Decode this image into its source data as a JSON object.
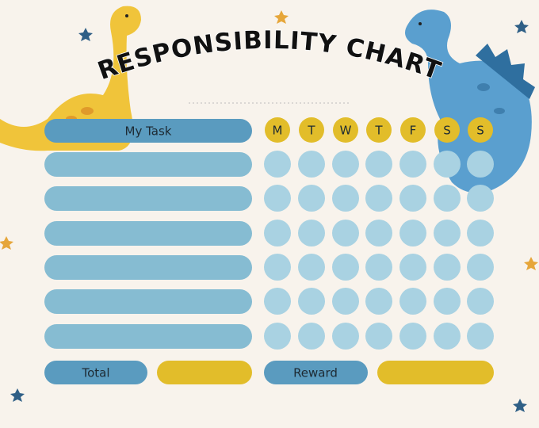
{
  "header": {
    "title": "RESPONSIBILITY CHART"
  },
  "table": {
    "task_header": "My Task",
    "days": [
      "M",
      "T",
      "W",
      "T",
      "F",
      "S",
      "S"
    ],
    "total_label": "Total",
    "reward_label": "Reward"
  }
}
